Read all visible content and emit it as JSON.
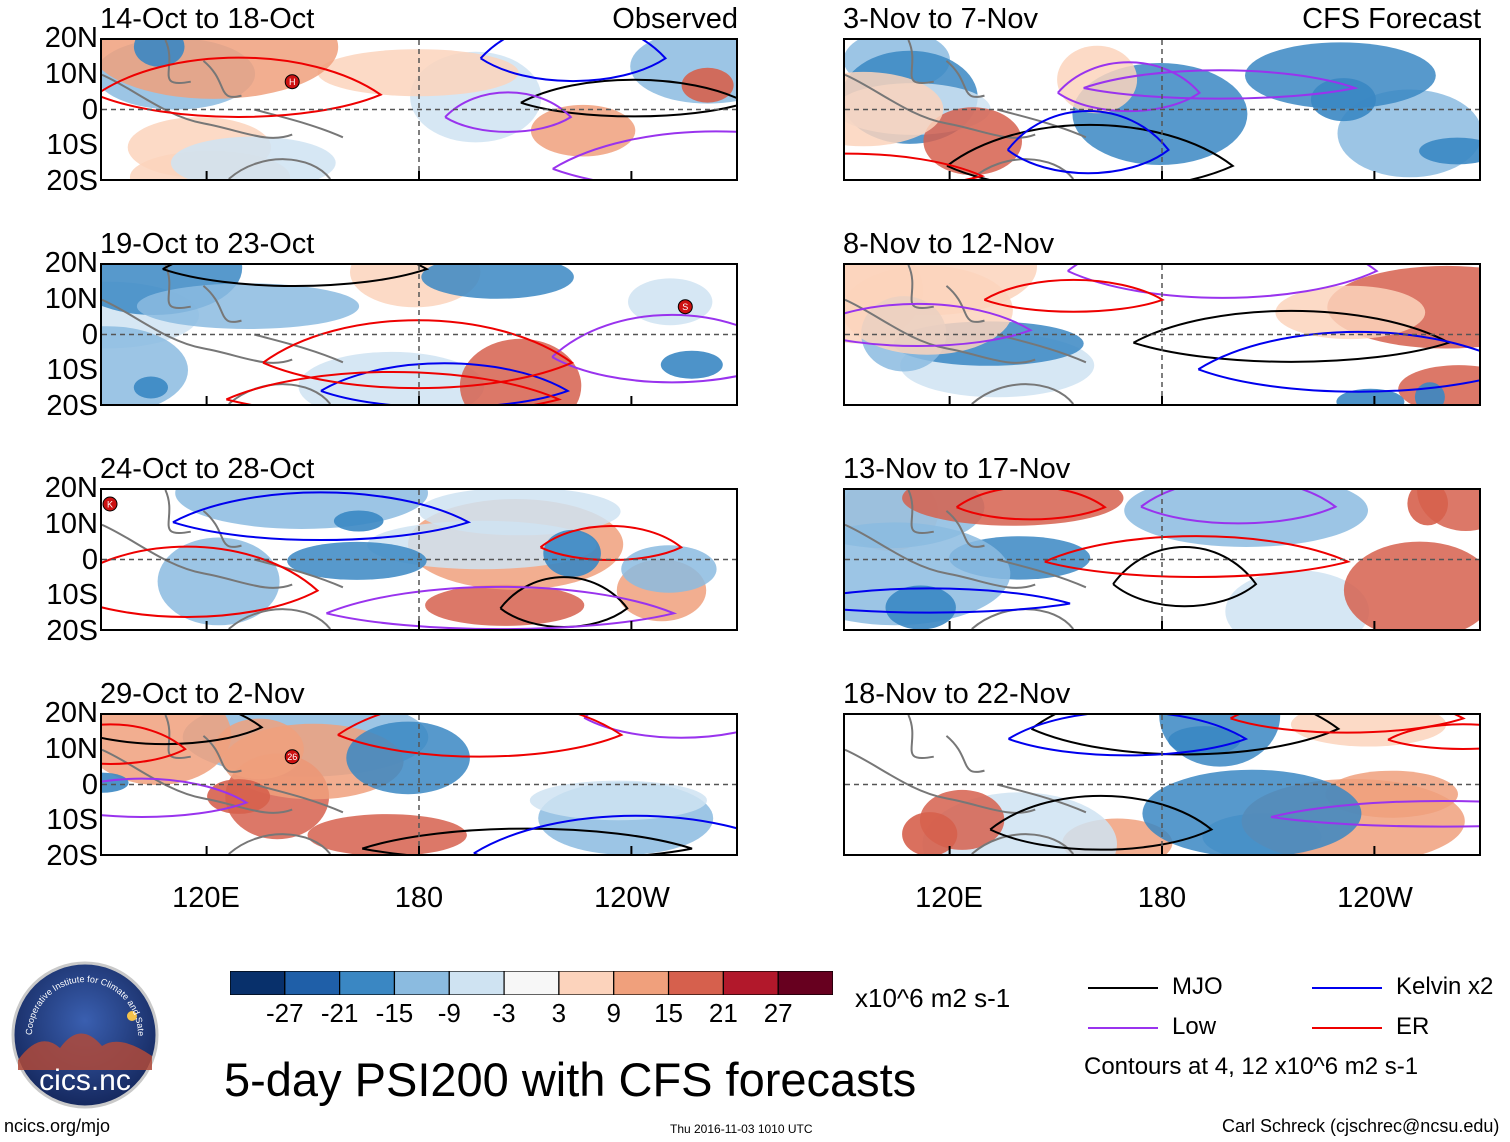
{
  "chart_data": {
    "type": "heatmap",
    "title": "5-day PSI200 with CFS forecasts",
    "variable": "PSI200 anomaly",
    "units": "x10^6 m2 s-1",
    "x_axis": {
      "ticks": [
        "120E",
        "180",
        "120W"
      ]
    },
    "y_axis": {
      "ticks": [
        "20N",
        "10N",
        "0",
        "10S",
        "20S"
      ]
    },
    "columns": [
      {
        "label": "Observed",
        "panels": [
          "14-Oct to 18-Oct",
          "19-Oct to 23-Oct",
          "24-Oct to 28-Oct",
          "29-Oct to 2-Nov"
        ]
      },
      {
        "label": "CFS Forecast",
        "panels": [
          "3-Nov to 7-Nov",
          "8-Nov to 12-Nov",
          "13-Nov to 17-Nov",
          "18-Nov to 22-Nov"
        ]
      }
    ],
    "colorbar": {
      "labels": [
        "-27",
        "-21",
        "-15",
        "-9",
        "-3",
        "3",
        "9",
        "15",
        "21",
        "27"
      ],
      "colors": [
        "#08306b",
        "#1f5fa8",
        "#3a87c3",
        "#8bbbe0",
        "#cfe3f2",
        "#f7f7f7",
        "#fcd3bc",
        "#f0a07c",
        "#d6604d",
        "#b2182b",
        "#67001f"
      ],
      "units_label": "x10^6 m2 s-1"
    },
    "legend": [
      {
        "name": "MJO",
        "color": "#000000"
      },
      {
        "name": "Kelvin x2",
        "color": "#0000ee"
      },
      {
        "name": "Low",
        "color": "#9933ee"
      },
      {
        "name": "ER",
        "color": "#ee0000"
      }
    ],
    "contour_note": "Contours at 4, 12 x10^6 m2 s-1",
    "storm_markers": [
      {
        "panel": "14-Oct to 18-Oct",
        "label": "H"
      },
      {
        "panel": "19-Oct to 23-Oct",
        "label": "S"
      },
      {
        "panel": "24-Oct to 28-Oct",
        "label": "K"
      },
      {
        "panel": "29-Oct to 2-Nov",
        "label": "26"
      }
    ]
  },
  "footer": {
    "left": "ncics.org/mjo",
    "center": "Thu 2016-11-03 1010 UTC",
    "right": "Carl Schreck (cjschrec@ncsu.edu)"
  },
  "logo": {
    "text": "cics.nc",
    "arc_text": "Cooperative Institute for Climate and Satellites"
  }
}
